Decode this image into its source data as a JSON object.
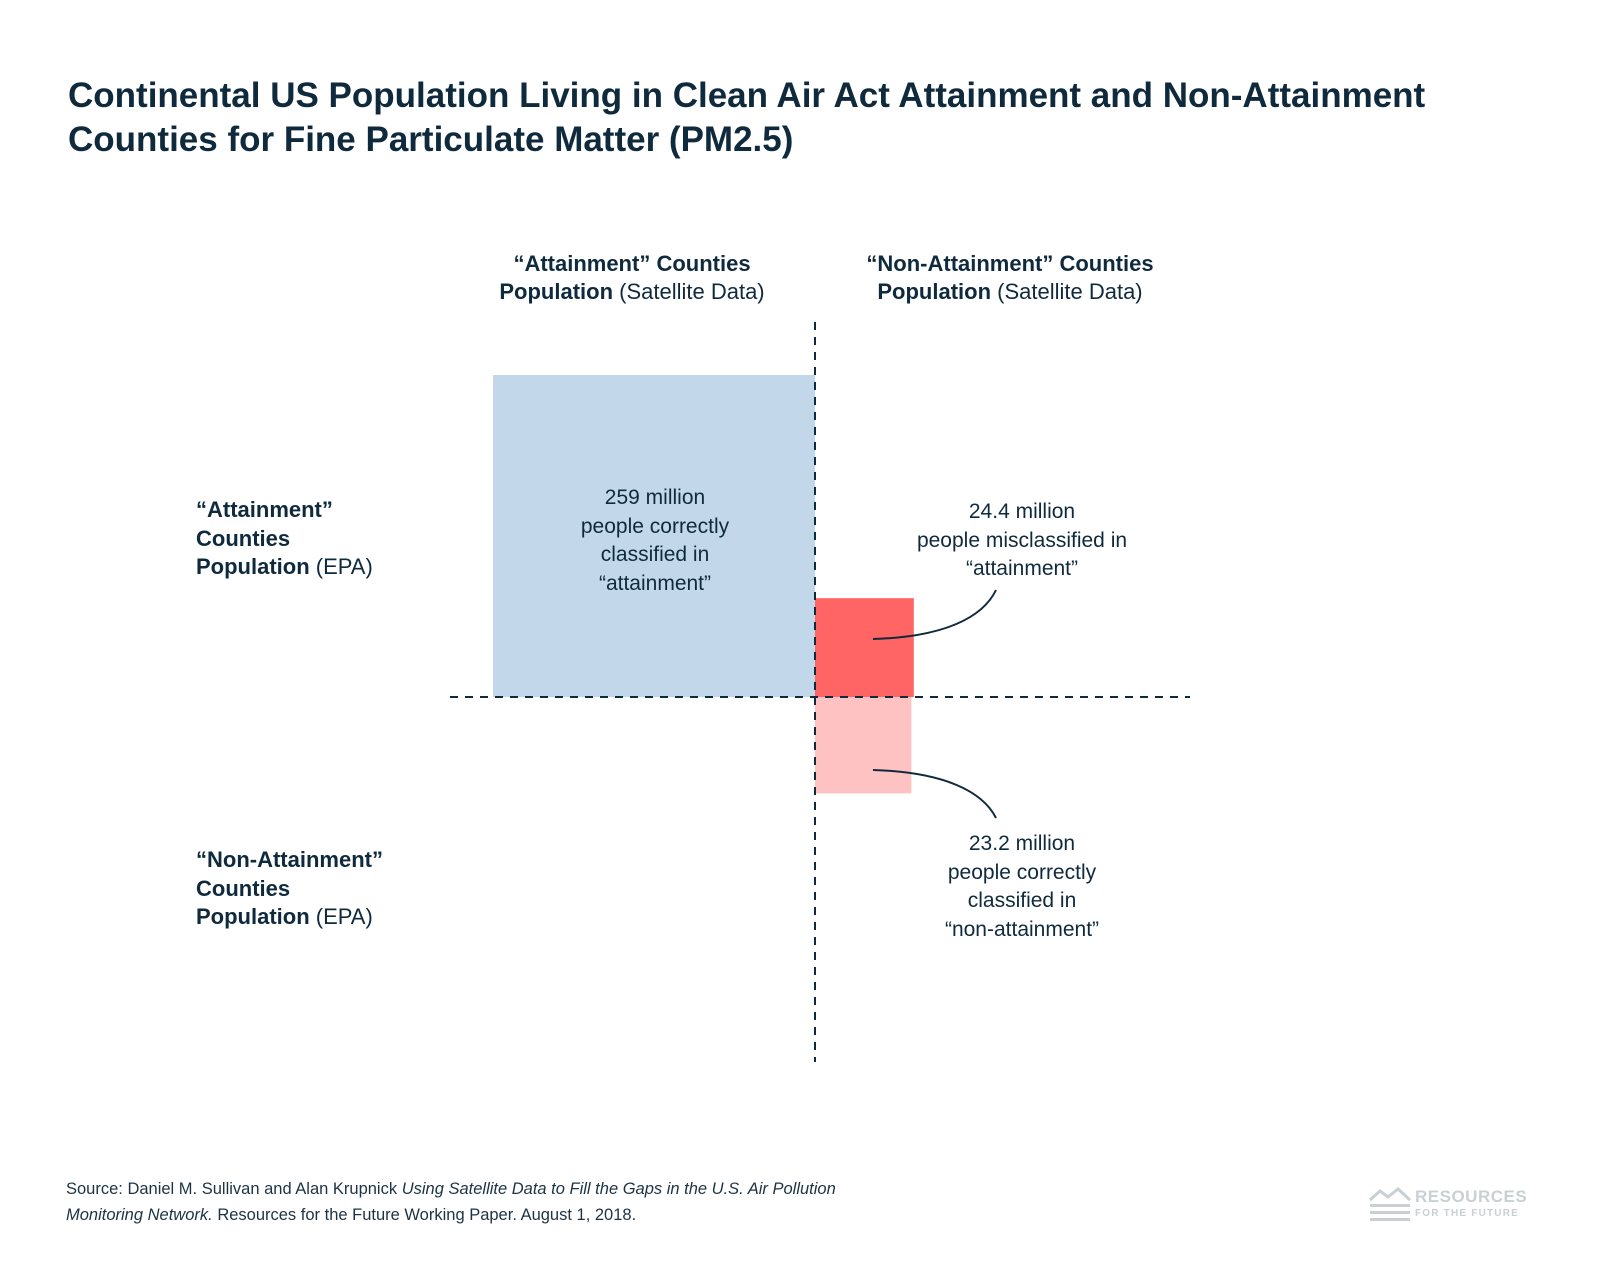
{
  "title": "Continental US Population Living in Clean Air Act Attainment and Non-Attainment Counties for Fine Particulate Matter (PM2.5)",
  "columns": [
    {
      "line1": "“Attainment” Counties",
      "bold": "Population",
      "rest": " (Satellite Data)"
    },
    {
      "line1": "“Non-Attainment” Counties",
      "bold": "Population",
      "rest": " (Satellite Data)"
    }
  ],
  "rows": [
    {
      "line1": "“Attainment”",
      "line2": "Counties",
      "bold": "Population",
      "rest": " (EPA)"
    },
    {
      "line1": "“Non-Attainment”",
      "line2": "Counties",
      "bold": "Population",
      "rest": " (EPA)"
    }
  ],
  "chart_data": {
    "type": "area",
    "units": "million people",
    "cells": [
      {
        "satellite": "attainment",
        "epa": "attainment",
        "value": 259,
        "color": "#c2d8ea",
        "label": [
          "259 million",
          "people correctly",
          "classified in",
          "“attainment”"
        ]
      },
      {
        "satellite": "non-attainment",
        "epa": "attainment",
        "value": 24.4,
        "color": "#ff6565",
        "label": [
          "24.4 million",
          "people misclassified in",
          "“attainment”"
        ]
      },
      {
        "satellite": "non-attainment",
        "epa": "non-attainment",
        "value": 23.2,
        "color": "#ffc2c2",
        "label": [
          "23.2 million",
          "people correctly",
          "classified in",
          "“non-attainment”"
        ]
      }
    ]
  },
  "source": {
    "prefix": "Source: Daniel M. Sullivan and Alan Krupnick ",
    "italic": "Using Satellite Data to Fill the Gaps in the U.S. Air Pollution Monitoring Network.",
    "suffix": " Resources for the Future Working Paper. August 1, 2018."
  },
  "logo": {
    "line1": "RESOURCES",
    "line2": "FOR THE FUTURE",
    "icon": "mountain-stripes-icon"
  }
}
